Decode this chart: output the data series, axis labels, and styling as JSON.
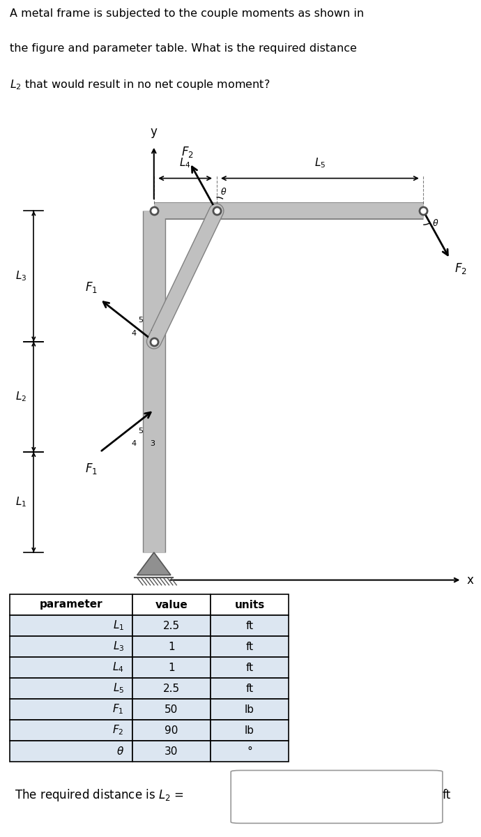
{
  "title_line1": "A metal frame is subjected to the couple moments as shown in",
  "title_line2": "the figure and parameter table. What is the required distance",
  "title_line3": "$L_2$ that would result in no net couple moment?",
  "table_headers": [
    "parameter",
    "value",
    "units"
  ],
  "table_rows": [
    [
      "$L_1$",
      "2.5",
      "ft"
    ],
    [
      "$L_3$",
      "1",
      "ft"
    ],
    [
      "$L_4$",
      "1",
      "ft"
    ],
    [
      "$L_5$",
      "2.5",
      "ft"
    ],
    [
      "$F_1$",
      "50",
      "lb"
    ],
    [
      "$F_2$",
      "90",
      "lb"
    ],
    [
      "$\\theta$",
      "30",
      "°"
    ]
  ],
  "answer_text": "The required distance is $L_2$ =",
  "answer_unit": "ft",
  "bg_color": "#ffffff",
  "frame_color": "#c0c0c0",
  "frame_edge": "#808080",
  "table_header_bg": "#ffffff",
  "table_row_bg": "#dce6f1"
}
